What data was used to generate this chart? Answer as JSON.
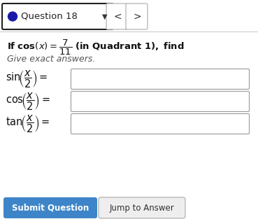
{
  "bg_color": "#ffffff",
  "border_color": "#222222",
  "header_dot_color": "#1a1aaa",
  "header_text": "Question 18",
  "nav_border_color": "#bbbbbb",
  "separator_color": "#cccccc",
  "italic_text": "Give exact answers.",
  "func_labels": [
    "sin",
    "cos",
    "tan"
  ],
  "input_box_color": "#ffffff",
  "input_border_color": "#999999",
  "submit_bg": "#3d85c8",
  "submit_text": "Submit Question",
  "submit_text_color": "#ffffff",
  "jump_bg": "#eeeeee",
  "jump_border_color": "#aaaaaa",
  "jump_text": "Jump to Answer",
  "jump_text_color": "#333333",
  "fig_width": 3.69,
  "fig_height": 3.13,
  "dpi": 100
}
